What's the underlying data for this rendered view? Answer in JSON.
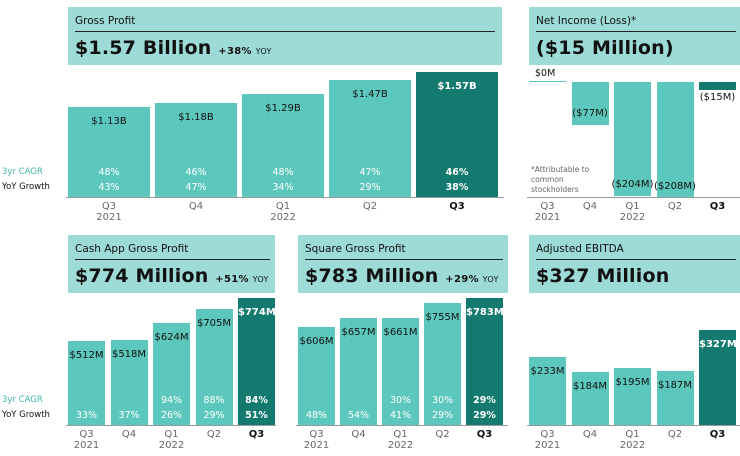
{
  "side_labels": {
    "cagr": "3yr CAGR",
    "yoy": "YoY Growth"
  },
  "gross_profit": {
    "label": "Gross Profit",
    "value": "$1.57 Billion",
    "yoy": "+38%",
    "yoy_suffix": "YOY",
    "categories": [
      [
        "Q3",
        "2021"
      ],
      [
        "Q4",
        ""
      ],
      [
        "Q1",
        "2022"
      ],
      [
        "Q2",
        ""
      ],
      [
        "Q3",
        ""
      ]
    ],
    "values": [
      1.13,
      1.18,
      1.29,
      1.47,
      1.57
    ],
    "labels": [
      "$1.13B",
      "$1.18B",
      "$1.29B",
      "$1.47B",
      "$1.57B"
    ],
    "cagr": [
      "48%",
      "46%",
      "48%",
      "47%",
      "46%"
    ],
    "yoy_growth": [
      "43%",
      "47%",
      "34%",
      "29%",
      "38%"
    ]
  },
  "net_income": {
    "label": "Net Income (Loss)*",
    "value": "($15 Million)",
    "zero_label": "$0M",
    "categories": [
      [
        "Q3",
        "2021"
      ],
      [
        "Q4",
        ""
      ],
      [
        "Q1",
        "2022"
      ],
      [
        "Q2",
        ""
      ],
      [
        "Q3",
        ""
      ]
    ],
    "values": [
      0,
      -77,
      -204,
      -208,
      -15
    ],
    "labels": [
      "",
      "($77M)",
      "($204M)",
      "($208M)",
      "($15M)"
    ],
    "note": [
      "*Attributable to",
      "common",
      "stockholders"
    ]
  },
  "cash_app": {
    "label": "Cash App Gross Profit",
    "value": "$774 Million",
    "yoy": "+51%",
    "yoy_suffix": "YOY",
    "categories": [
      [
        "Q3",
        "2021"
      ],
      [
        "Q4",
        ""
      ],
      [
        "Q1",
        "2022"
      ],
      [
        "Q2",
        ""
      ],
      [
        "Q3",
        ""
      ]
    ],
    "values": [
      512,
      518,
      624,
      705,
      774
    ],
    "labels": [
      "$512M",
      "$518M",
      "$624M",
      "$705M",
      "$774M"
    ],
    "cagr": [
      "",
      "",
      "94%",
      "88%",
      "84%"
    ],
    "yoy_growth": [
      "33%",
      "37%",
      "26%",
      "29%",
      "51%"
    ]
  },
  "square": {
    "label": "Square Gross Profit",
    "value": "$783 Million",
    "yoy": "+29%",
    "yoy_suffix": "YOY",
    "categories": [
      [
        "Q3",
        "2021"
      ],
      [
        "Q4",
        ""
      ],
      [
        "Q1",
        "2022"
      ],
      [
        "Q2",
        ""
      ],
      [
        "Q3",
        ""
      ]
    ],
    "values": [
      606,
      657,
      661,
      755,
      783
    ],
    "labels": [
      "$606M",
      "$657M",
      "$661M",
      "$755M",
      "$783M"
    ],
    "cagr": [
      "",
      "",
      "30%",
      "30%",
      "29%"
    ],
    "yoy_growth": [
      "48%",
      "54%",
      "41%",
      "29%",
      "29%"
    ]
  },
  "ebitda": {
    "label": "Adjusted EBITDA",
    "value": "$327 Million",
    "categories": [
      [
        "Q3",
        "2021"
      ],
      [
        "Q4",
        ""
      ],
      [
        "Q1",
        "2022"
      ],
      [
        "Q2",
        ""
      ],
      [
        "Q3",
        ""
      ]
    ],
    "values": [
      233,
      184,
      195,
      187,
      327
    ],
    "labels": [
      "$233M",
      "$184M",
      "$195M",
      "$187M",
      "$327M"
    ]
  },
  "colors": {
    "header": "#9ddbd6",
    "bar": "#5cc7bc",
    "highlight": "#147a70",
    "cagr_text": "#3fb8ad"
  },
  "chart_data": [
    {
      "type": "bar",
      "title": "Gross Profit",
      "categories": [
        "Q3 2021",
        "Q4",
        "Q1 2022",
        "Q2",
        "Q3"
      ],
      "values": [
        1.13,
        1.18,
        1.29,
        1.47,
        1.57
      ],
      "ylabel": "$B"
    },
    {
      "type": "bar",
      "title": "Net Income (Loss)",
      "categories": [
        "Q3 2021",
        "Q4",
        "Q1 2022",
        "Q2",
        "Q3"
      ],
      "values": [
        0,
        -77,
        -204,
        -208,
        -15
      ],
      "ylabel": "$M"
    },
    {
      "type": "bar",
      "title": "Cash App Gross Profit",
      "categories": [
        "Q3 2021",
        "Q4",
        "Q1 2022",
        "Q2",
        "Q3"
      ],
      "values": [
        512,
        518,
        624,
        705,
        774
      ],
      "ylabel": "$M"
    },
    {
      "type": "bar",
      "title": "Square Gross Profit",
      "categories": [
        "Q3 2021",
        "Q4",
        "Q1 2022",
        "Q2",
        "Q3"
      ],
      "values": [
        606,
        657,
        661,
        755,
        783
      ],
      "ylabel": "$M"
    },
    {
      "type": "bar",
      "title": "Adjusted EBITDA",
      "categories": [
        "Q3 2021",
        "Q4",
        "Q1 2022",
        "Q2",
        "Q3"
      ],
      "values": [
        233,
        184,
        195,
        187,
        327
      ],
      "ylabel": "$M"
    }
  ]
}
